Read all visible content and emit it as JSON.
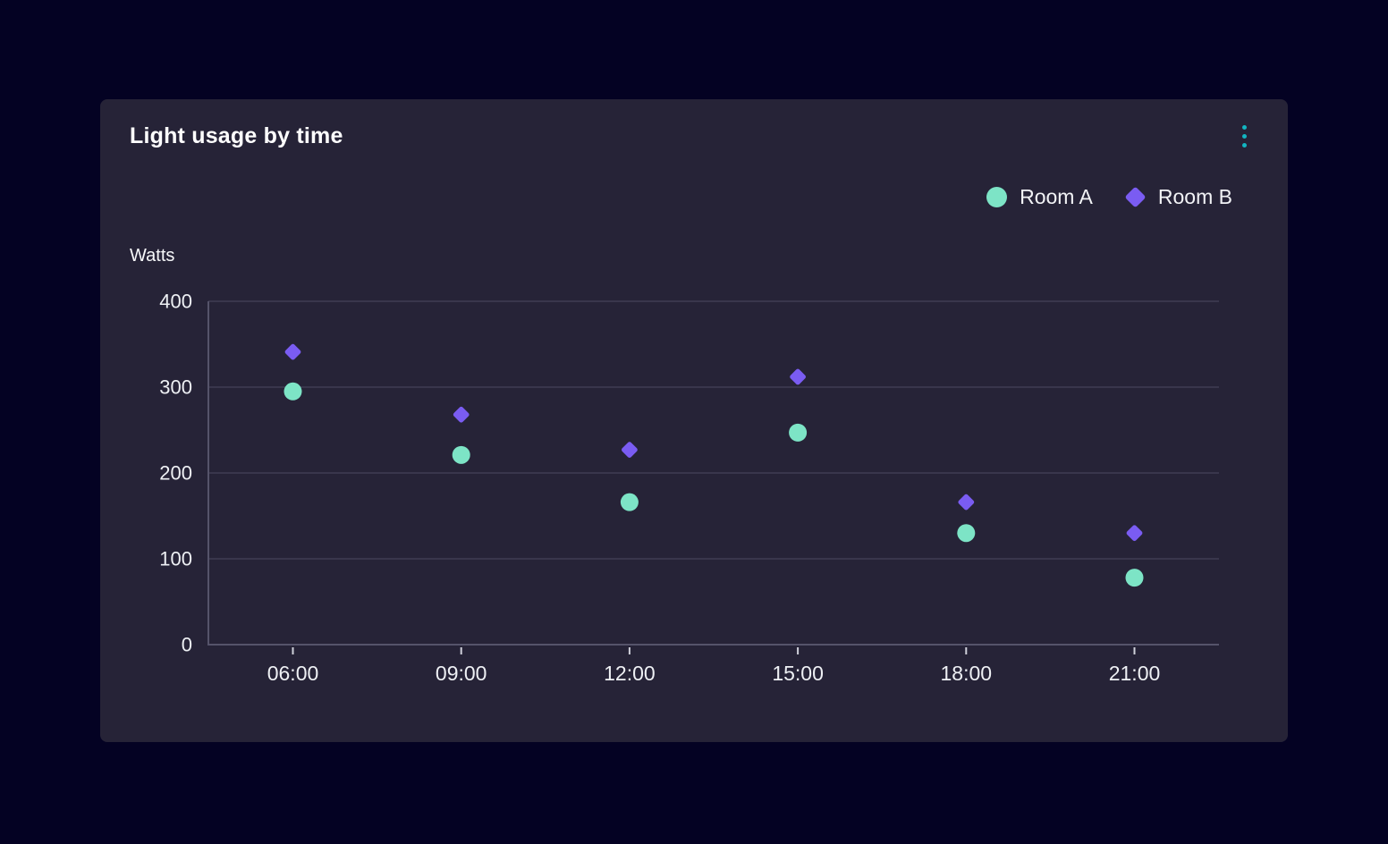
{
  "card": {
    "title": "Light usage by time"
  },
  "menu": {
    "icon": "kebab-menu-icon"
  },
  "legend": [
    {
      "label": "Room A",
      "marker": "circle",
      "color": "#7de4c6"
    },
    {
      "label": "Room B",
      "marker": "diamond",
      "color": "#7a5cf2"
    }
  ],
  "chart_data": {
    "type": "scatter",
    "title": "Light usage by time",
    "xlabel": "",
    "ylabel": "Watts",
    "categories": [
      "06:00",
      "09:00",
      "12:00",
      "15:00",
      "18:00",
      "21:00"
    ],
    "series": [
      {
        "name": "Room A",
        "marker": "circle",
        "color": "#7de4c6",
        "values": [
          295,
          221,
          166,
          247,
          130,
          78
        ]
      },
      {
        "name": "Room B",
        "marker": "diamond",
        "color": "#7a5cf2",
        "values": [
          341,
          268,
          227,
          312,
          166,
          130
        ]
      }
    ],
    "ylim": [
      0,
      400
    ],
    "yticks": [
      0,
      100,
      200,
      300,
      400
    ],
    "grid": "horizontal",
    "legend_position": "top-right"
  },
  "colors": {
    "page_bg": "#040223",
    "card_bg": "#262337",
    "gridline": "#4c4a60",
    "axis": "#55536a",
    "tick_mark": "#cfd0da",
    "tick_text": "#eef0f4",
    "menu_accent": "#12b5c1",
    "title_text": "#ffffff"
  }
}
